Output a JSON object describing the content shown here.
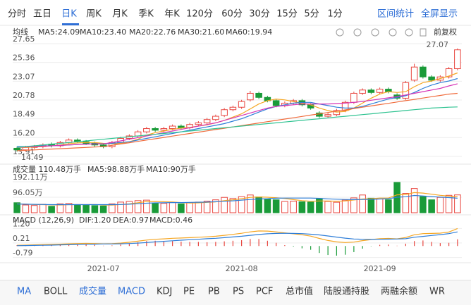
{
  "toolbar": {
    "periods": [
      "分时",
      "五日",
      "日K",
      "周K",
      "月K",
      "季K",
      "年K",
      "120分",
      "60分",
      "30分",
      "15分",
      "5分",
      "1分"
    ],
    "actions": [
      "区间统计",
      "全屏显示"
    ]
  },
  "chart_data": [
    {
      "type": "candlestick",
      "label": "均线",
      "adjust": "前复权",
      "categories": [
        null,
        null,
        null,
        null,
        null,
        null,
        null,
        null,
        null,
        null,
        "2021-07",
        null,
        null,
        null,
        null,
        null,
        null,
        null,
        null,
        null,
        null,
        null,
        null,
        null,
        null,
        null,
        "2021-08",
        null,
        null,
        null,
        null,
        null,
        null,
        null,
        null,
        null,
        null,
        null,
        null,
        null,
        null,
        null,
        "2021-09",
        null,
        null,
        null,
        null,
        null,
        null,
        null,
        null,
        null
      ],
      "open": [
        14.9,
        14.7,
        15.0,
        15.1,
        15.4,
        15.2,
        15.6,
        15.9,
        15.7,
        15.5,
        15.3,
        15.1,
        15.6,
        16.1,
        16.4,
        16.9,
        17.3,
        17.1,
        17.3,
        17.6,
        17.4,
        17.8,
        18.0,
        18.4,
        18.9,
        19.6,
        19.9,
        20.8,
        21.6,
        21.1,
        20.7,
        20.1,
        20.4,
        20.7,
        20.2,
        19.2,
        18.8,
        19.0,
        19.5,
        20.5,
        21.6,
        22.0,
        21.7,
        22.1,
        21.4,
        21.0,
        23.2,
        24.8,
        23.6,
        23.2,
        23.6,
        24.6
      ],
      "high": [
        15.1,
        15.2,
        15.3,
        15.5,
        15.6,
        15.8,
        16.1,
        16.1,
        15.9,
        15.7,
        15.5,
        15.8,
        16.3,
        16.6,
        17.1,
        17.5,
        17.5,
        17.5,
        17.8,
        17.8,
        18.0,
        18.2,
        18.6,
        19.0,
        19.8,
        20.1,
        20.8,
        21.9,
        21.8,
        21.3,
        20.9,
        20.6,
        20.9,
        20.9,
        20.4,
        19.4,
        19.2,
        19.7,
        20.7,
        21.8,
        22.2,
        22.2,
        22.3,
        22.3,
        21.6,
        23.1,
        25.2,
        25.0,
        23.8,
        23.8,
        24.8,
        27.07
      ],
      "low": [
        14.49,
        14.5,
        14.8,
        14.9,
        15.0,
        15.0,
        15.4,
        15.5,
        15.3,
        15.1,
        14.9,
        14.9,
        15.4,
        15.9,
        16.2,
        16.7,
        16.9,
        16.9,
        17.1,
        17.2,
        17.2,
        17.6,
        17.8,
        18.2,
        18.7,
        19.4,
        19.7,
        20.6,
        20.9,
        20.5,
        19.9,
        19.9,
        20.2,
        20.0,
        19.6,
        18.6,
        18.6,
        18.8,
        19.3,
        20.3,
        21.4,
        21.5,
        21.5,
        21.6,
        20.8,
        20.8,
        23.0,
        23.4,
        23.0,
        23.0,
        23.4,
        24.4
      ],
      "close": [
        14.7,
        15.0,
        15.1,
        15.3,
        15.2,
        15.6,
        15.9,
        15.7,
        15.5,
        15.3,
        15.1,
        15.6,
        16.1,
        16.4,
        16.9,
        17.3,
        17.1,
        17.3,
        17.6,
        17.4,
        17.8,
        18.0,
        18.4,
        18.8,
        19.6,
        19.9,
        20.6,
        21.6,
        21.1,
        20.7,
        20.1,
        20.4,
        20.7,
        20.2,
        19.8,
        18.8,
        19.0,
        19.5,
        20.5,
        21.6,
        22.0,
        21.7,
        22.1,
        21.8,
        21.0,
        22.9,
        24.8,
        23.6,
        23.2,
        23.6,
        24.6,
        26.9
      ],
      "up_color": "#e8463f",
      "down_color": "#1a9b39",
      "series": [
        {
          "name": "MA5:24.09",
          "color": "#f5a623",
          "values": [
            15.0,
            15.0,
            15.05,
            15.1,
            15.2,
            15.3,
            15.45,
            15.55,
            15.6,
            15.6,
            15.5,
            15.45,
            15.5,
            15.7,
            16.0,
            16.5,
            16.8,
            17.0,
            17.2,
            17.35,
            17.45,
            17.6,
            17.75,
            18.0,
            18.3,
            18.7,
            19.1,
            19.7,
            20.3,
            20.7,
            20.9,
            20.8,
            20.6,
            20.4,
            20.2,
            19.8,
            19.5,
            19.3,
            19.4,
            19.8,
            20.4,
            21.0,
            21.5,
            21.8,
            21.7,
            21.8,
            22.4,
            22.9,
            23.1,
            23.4,
            23.7,
            24.09
          ]
        },
        {
          "name": "MA10:23.40",
          "color": "#2f7ed8",
          "values": [
            15.1,
            15.1,
            15.15,
            15.2,
            15.2,
            15.25,
            15.3,
            15.35,
            15.4,
            15.45,
            15.45,
            15.5,
            15.6,
            15.7,
            15.9,
            16.1,
            16.3,
            16.5,
            16.7,
            16.9,
            17.1,
            17.3,
            17.5,
            17.7,
            17.9,
            18.2,
            18.5,
            18.9,
            19.3,
            19.7,
            20.0,
            20.2,
            20.4,
            20.5,
            20.5,
            20.3,
            20.1,
            19.9,
            19.8,
            19.8,
            20.0,
            20.3,
            20.6,
            20.9,
            21.1,
            21.3,
            21.7,
            22.2,
            22.6,
            22.9,
            23.1,
            23.4
          ]
        },
        {
          "name": "MA20:22.76",
          "color": "#d633b5",
          "values": [
            15.0,
            15.05,
            15.1,
            15.15,
            15.2,
            15.25,
            15.3,
            15.35,
            15.4,
            15.42,
            15.44,
            15.6,
            15.8,
            16.0,
            16.2,
            16.4,
            16.6,
            16.8,
            17.0,
            17.2,
            17.4,
            17.6,
            17.8,
            18.0,
            18.3,
            18.6,
            18.9,
            19.2,
            19.5,
            19.8,
            20.0,
            20.1,
            20.2,
            20.3,
            20.3,
            20.3,
            20.3,
            20.35,
            20.4,
            20.5,
            20.6,
            20.75,
            20.9,
            21.05,
            21.2,
            21.4,
            21.6,
            21.8,
            22.0,
            22.2,
            22.5,
            22.76
          ]
        },
        {
          "name": "MA30:21.60",
          "color": "#f06b3c",
          "values": [
            14.6,
            14.65,
            14.7,
            14.75,
            14.8,
            14.85,
            14.9,
            14.95,
            15.0,
            15.05,
            15.1,
            15.26,
            15.42,
            15.58,
            15.74,
            15.9,
            16.06,
            16.22,
            16.38,
            16.54,
            16.7,
            16.86,
            17.02,
            17.18,
            17.34,
            17.5,
            17.66,
            17.82,
            17.98,
            18.14,
            18.3,
            18.46,
            18.62,
            18.78,
            18.94,
            19.1,
            19.26,
            19.42,
            19.58,
            19.74,
            19.9,
            20.06,
            20.22,
            20.38,
            20.54,
            20.7,
            20.86,
            21.02,
            21.18,
            21.34,
            21.5,
            21.6
          ]
        },
        {
          "name": "MA60:19.94",
          "color": "#2fc391",
          "values": [
            15.0,
            15.1,
            15.2,
            15.3,
            15.4,
            15.5,
            15.6,
            15.7,
            15.8,
            15.9,
            16.0,
            16.1,
            16.2,
            16.3,
            16.4,
            16.5,
            16.6,
            16.7,
            16.8,
            16.9,
            17.0,
            17.1,
            17.2,
            17.3,
            17.4,
            17.5,
            17.6,
            17.7,
            17.8,
            17.9,
            18.0,
            18.1,
            18.2,
            18.3,
            18.4,
            18.5,
            18.6,
            18.7,
            18.8,
            18.9,
            19.0,
            19.1,
            19.2,
            19.3,
            19.4,
            19.5,
            19.6,
            19.7,
            19.8,
            19.85,
            19.9,
            19.94
          ]
        }
      ],
      "ylim": [
        13.91,
        27.65
      ],
      "yticks": [
        27.65,
        25.36,
        23.07,
        20.78,
        18.49,
        {
          "value": 16.2,
          "label": "16.20"
        },
        13.91
      ],
      "annotations": [
        "27.07",
        "14.49"
      ],
      "grid": true
    },
    {
      "type": "bar",
      "title": "成交量 110.48万手",
      "values": [
        62,
        48,
        45,
        52,
        40,
        55,
        58,
        50,
        46,
        44,
        42,
        55,
        66,
        70,
        75,
        78,
        60,
        58,
        64,
        55,
        62,
        66,
        72,
        80,
        95,
        88,
        100,
        110,
        98,
        85,
        80,
        70,
        72,
        68,
        66,
        88,
        70,
        65,
        78,
        92,
        110,
        90,
        85,
        80,
        188,
        120,
        150,
        100,
        80,
        95,
        108,
        110.48
      ],
      "series": [
        {
          "name": "MA5:98.88万手",
          "color": "#f5a623",
          "values": [
            55,
            53,
            51,
            50,
            49,
            48,
            50,
            51,
            50,
            51,
            48,
            47,
            51,
            55,
            62,
            69,
            70,
            68,
            67,
            63,
            60,
            61,
            64,
            67,
            75,
            80,
            87,
            95,
            98,
            96,
            93,
            88,
            81,
            75,
            71,
            73,
            73,
            71,
            73,
            79,
            85,
            87,
            91,
            91,
            111,
            113,
            125,
            122,
            115,
            108,
            103,
            98.88
          ]
        },
        {
          "name": "MA10:90万手",
          "color": "#2f7ed8",
          "values": [
            54,
            53,
            52,
            51,
            50,
            50,
            50,
            50,
            50,
            50,
            50,
            50,
            51,
            53,
            56,
            59,
            61,
            62,
            63,
            63,
            64,
            65,
            66,
            68,
            71,
            74,
            78,
            82,
            85,
            87,
            90,
            91,
            91,
            91,
            91,
            89,
            86,
            84,
            82,
            81,
            82,
            83,
            85,
            87,
            96,
            99,
            107,
            104,
            100,
            97,
            94,
            90
          ]
        }
      ],
      "ylim": [
        0,
        192.11
      ],
      "yticks": [
        {
          "value": 192.11,
          "label": "192.11万"
        },
        {
          "value": 96.05,
          "label": "96.05万"
        }
      ],
      "grid": true
    },
    {
      "type": "line",
      "title": "MACD (12,26,9)",
      "series": [
        {
          "name": "DIF:1.20",
          "color": "#f5a623",
          "values": [
            0.05,
            0.06,
            0.08,
            0.1,
            0.11,
            0.13,
            0.15,
            0.17,
            0.18,
            0.17,
            0.15,
            0.16,
            0.2,
            0.26,
            0.33,
            0.41,
            0.46,
            0.49,
            0.53,
            0.55,
            0.57,
            0.6,
            0.63,
            0.67,
            0.73,
            0.8,
            0.87,
            0.97,
            1.03,
            1.02,
            0.97,
            0.9,
            0.84,
            0.77,
            0.68,
            0.52,
            0.38,
            0.28,
            0.24,
            0.27,
            0.37,
            0.44,
            0.5,
            0.52,
            0.49,
            0.58,
            0.77,
            0.85,
            0.86,
            0.88,
            0.96,
            1.2
          ]
        },
        {
          "name": "DEA:0.97",
          "color": "#2f7ed8",
          "values": [
            0.02,
            0.03,
            0.04,
            0.05,
            0.06,
            0.08,
            0.09,
            0.11,
            0.12,
            0.13,
            0.14,
            0.14,
            0.15,
            0.17,
            0.2,
            0.24,
            0.28,
            0.32,
            0.36,
            0.4,
            0.43,
            0.46,
            0.5,
            0.53,
            0.57,
            0.62,
            0.67,
            0.73,
            0.79,
            0.84,
            0.86,
            0.87,
            0.86,
            0.85,
            0.81,
            0.76,
            0.69,
            0.61,
            0.54,
            0.48,
            0.46,
            0.45,
            0.46,
            0.47,
            0.48,
            0.5,
            0.6,
            0.66,
            0.72,
            0.78,
            0.85,
            0.97
          ]
        }
      ],
      "histogram": {
        "name": "MACD:0.46",
        "positive_color": "#e8463f",
        "negative_color": "#1a9b39",
        "values": [
          0.06,
          0.06,
          0.08,
          0.1,
          0.1,
          0.1,
          0.12,
          0.12,
          0.12,
          0.08,
          0.02,
          0.04,
          0.1,
          0.18,
          0.26,
          0.34,
          0.36,
          0.34,
          0.34,
          0.3,
          0.28,
          0.28,
          0.26,
          0.28,
          0.32,
          0.36,
          0.4,
          0.48,
          0.48,
          0.36,
          0.22,
          0.06,
          -0.04,
          -0.16,
          -0.26,
          -0.48,
          -0.62,
          -0.66,
          -0.6,
          -0.42,
          -0.18,
          -0.02,
          0.08,
          0.1,
          0.02,
          0.16,
          0.34,
          0.38,
          0.28,
          0.2,
          0.22,
          0.46
        ]
      },
      "ylim": [
        -1.1,
        1.8
      ],
      "yticks": [
        {
          "value": 1.2,
          "label": "1.20"
        },
        0.21,
        -0.79
      ],
      "grid": true
    }
  ],
  "indicator_tabs": [
    "MA",
    "BOLL",
    "成交量",
    "MACD",
    "KDJ",
    "PE",
    "PB",
    "PS",
    "PCF",
    "总市值",
    "陆股通持股",
    "两融余额",
    "WR"
  ]
}
